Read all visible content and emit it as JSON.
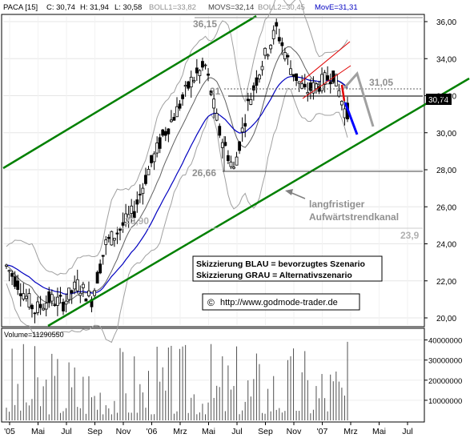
{
  "header": {
    "symbol": "PACA [15]",
    "close": "C: 30,74",
    "high": "H: 31,94",
    "low": "L: 30,58",
    "boll1": "BOLL1=33,82",
    "movs": "MOVS=32,14",
    "boll2": "BOLL2=30,45",
    "move": "MovE=31,31"
  },
  "colors": {
    "background": "#ffffff",
    "channel": "#008000",
    "candle": "#000000",
    "bollinger": "#a0a0a0",
    "sma": "#606060",
    "ema": "#0000c0",
    "blue_scenario": "#0000ff",
    "grey_scenario": "#a0a0a0",
    "red_channel": "#e00000",
    "price_box_bg": "#000000",
    "price_box_fg": "#ffffff"
  },
  "chart_data": {
    "type": "candlestick",
    "y_axis": {
      "ylim": [
        19.5,
        36.6
      ],
      "ticks": [
        20,
        22,
        24,
        26,
        28,
        30,
        32,
        34,
        36
      ],
      "tick_labels": [
        "20,00",
        "22,00",
        "24,00",
        "26,00",
        "28,00",
        "30,00",
        "32,00",
        "34,00",
        "36,00"
      ],
      "side": "right"
    },
    "x_axis": {
      "labels": [
        "'05",
        "Mai",
        "Jul",
        "Sep",
        "Nov",
        "'06",
        "Mrz",
        "Mai",
        "Jul",
        "Sep",
        "Nov",
        "'07",
        "Mrz",
        "Mai",
        "Jul"
      ]
    },
    "last_price_box": "30,74",
    "price_series": {
      "name": "PACA",
      "approx_path": [
        [
          "2005-03",
          22.8
        ],
        [
          "2005-04",
          21.6
        ],
        [
          "2005-05",
          20.4
        ],
        [
          "2005-06",
          21.0
        ],
        [
          "2005-07",
          20.8
        ],
        [
          "2005-08",
          21.8
        ],
        [
          "2005-09",
          21.0
        ],
        [
          "2005-10",
          24.0
        ],
        [
          "2005-11",
          24.8
        ],
        [
          "2005-12",
          25.8
        ],
        [
          "2006-01",
          28.0
        ],
        [
          "2006-02",
          29.8
        ],
        [
          "2006-03",
          31.2
        ],
        [
          "2006-04",
          32.8
        ],
        [
          "2006-05",
          33.6
        ],
        [
          "2006-06",
          30.0
        ],
        [
          "2006-07",
          28.0
        ],
        [
          "2006-08",
          31.5
        ],
        [
          "2006-09",
          33.8
        ],
        [
          "2006-10",
          35.6
        ],
        [
          "2006-11",
          33.5
        ],
        [
          "2006-12",
          32.2
        ],
        [
          "2007-01",
          32.6
        ],
        [
          "2007-02",
          33.2
        ],
        [
          "2007-03",
          30.74
        ]
      ]
    },
    "indicators": [
      {
        "name": "BOLL1",
        "value": "33,82"
      },
      {
        "name": "MOVS",
        "value": "32,14"
      },
      {
        "name": "BOLL2",
        "value": "30,45"
      },
      {
        "name": "MovE",
        "value": "31,31"
      }
    ],
    "annotations": {
      "high_label": "36,15",
      "low_label": "26,66",
      "level_label": "31,05",
      "support_label": "23,90",
      "support_label_right": "23,9",
      "partial_label": "31",
      "channel_text_line1": "langfristiger",
      "channel_text_line2": "Aufwärtstrendkanal",
      "legend_line1": "Skizzierung BLAU = bevorzugtes Szenario",
      "legend_line2": "Skizzierung GRAU = Alternativszenario",
      "copyright_symbol": "©",
      "copyright_url": "http://www.godmode-trader.de"
    },
    "volume": {
      "label": "Volume=11290550",
      "ticks": [
        10000000,
        20000000,
        30000000,
        40000000
      ],
      "tick_labels": [
        "10000000",
        "20000000",
        "30000000",
        "40000000"
      ],
      "ylim": [
        0,
        45000000
      ]
    }
  }
}
